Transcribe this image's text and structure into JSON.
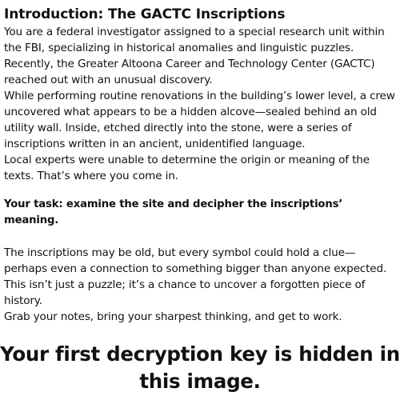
{
  "document": {
    "title": "Introduction: The GACTC Inscriptions",
    "paragraphs": [
      "You are a federal investigator assigned to a special research unit within the FBI, specializing in historical anomalies and linguistic puzzles. Recently, the Greater Altoona Career and Technology Center (GACTC) reached out with an unusual discovery.",
      "While performing routine renovations in the building’s lower level, a crew uncovered what appears to be a hidden alcove—sealed behind an old utility wall. Inside, etched directly into the stone, were a series of inscriptions written in an ancient, unidentified language.",
      "Local experts were unable to determine the origin or meaning of the texts. That’s where you come in."
    ],
    "task": "Your task: examine the site and decipher the inscriptions’ meaning.",
    "closing_paragraphs": [
      "The inscriptions may be old, but every symbol could hold a clue—perhaps even a connection to something bigger than anyone expected. This isn’t just a puzzle; it’s a chance to uncover a forgotten piece of history.",
      "Grab your notes, bring your sharpest thinking, and get to work."
    ],
    "key_message": "Your first decryption key is hidden in this image."
  }
}
